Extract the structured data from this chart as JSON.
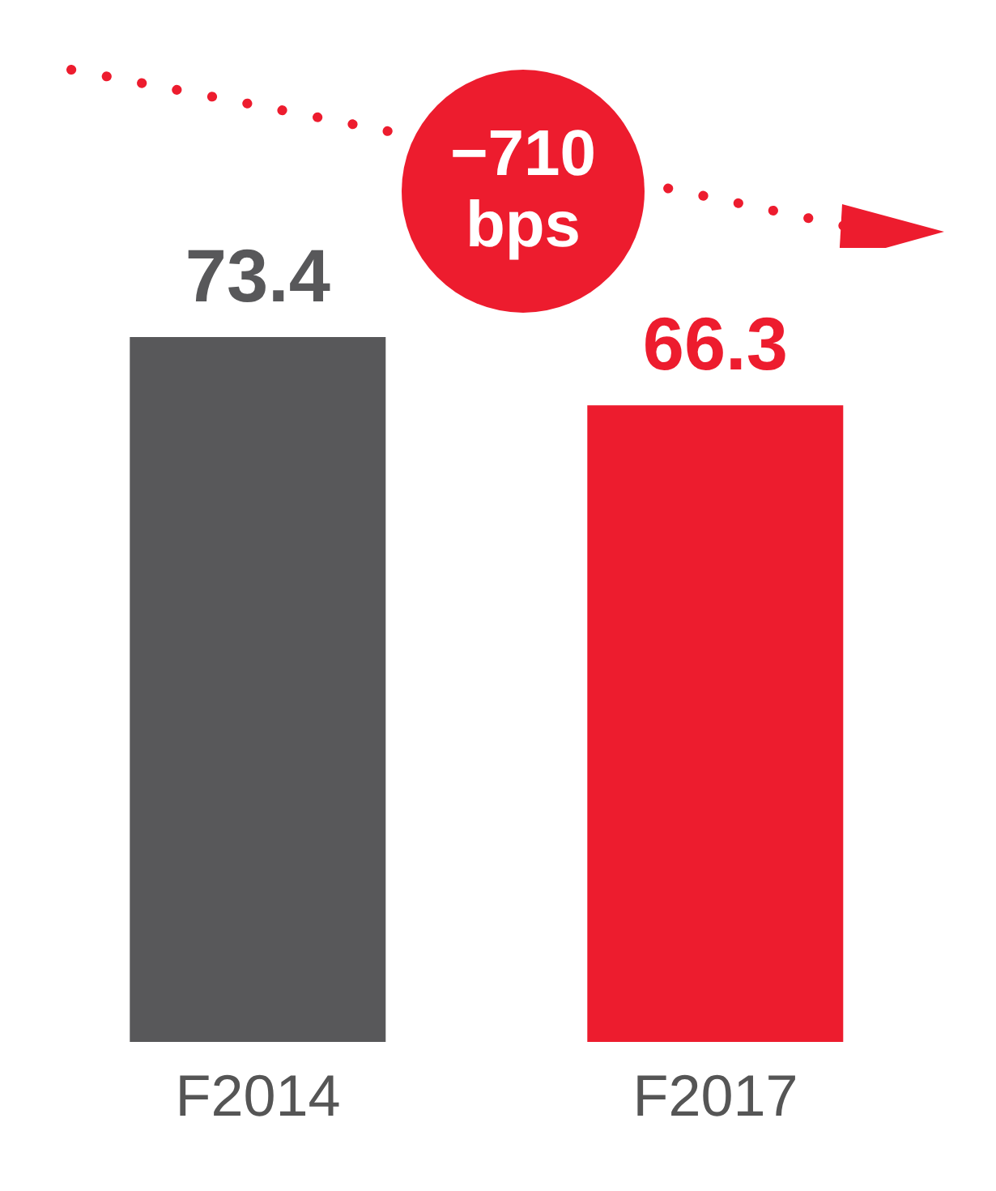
{
  "chart_data": {
    "type": "bar",
    "categories": [
      "F2014",
      "F2017"
    ],
    "values": [
      73.4,
      66.3
    ],
    "colors": [
      "#58585a",
      "#ed1c2e"
    ],
    "data_labels": true,
    "annotations": [
      "−710 bps"
    ]
  }
}
